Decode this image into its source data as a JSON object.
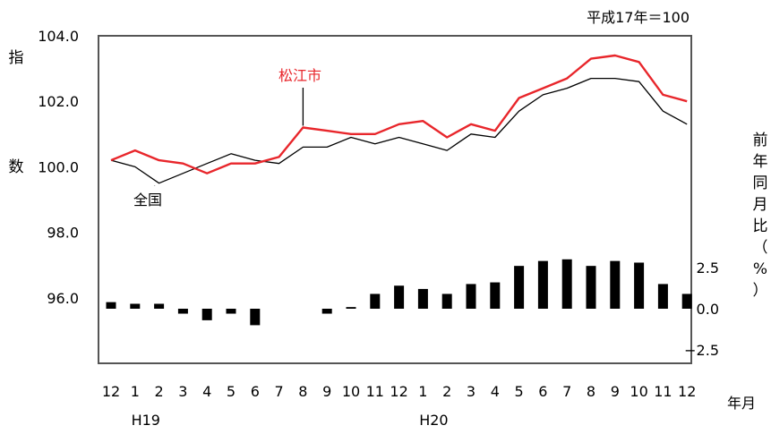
{
  "chart_data": {
    "type": "line",
    "note": "平成17年＝100",
    "ylabel": "指数",
    "ylabel2": "前年同月比（%）",
    "xlabel": "年月",
    "year_labels": [
      "H19",
      "H20"
    ],
    "categories": [
      "12",
      "1",
      "2",
      "3",
      "4",
      "5",
      "6",
      "7",
      "8",
      "9",
      "10",
      "11",
      "12",
      "1",
      "2",
      "3",
      "4",
      "5",
      "6",
      "7",
      "8",
      "9",
      "10",
      "11",
      "12"
    ],
    "y_ticks": [
      "104.0",
      "102.0",
      "100.0",
      "98.0",
      "96.0"
    ],
    "y_range": [
      94.0,
      104.0
    ],
    "y2_ticks": [
      "2.5",
      "0.0",
      "−2.5"
    ],
    "y2_range": [
      -3.1,
      3.6
    ],
    "series": [
      {
        "name": "松江市",
        "type": "line",
        "color": "#e8262b",
        "values": [
          100.2,
          100.5,
          100.2,
          100.1,
          99.8,
          100.1,
          100.1,
          100.3,
          101.2,
          101.1,
          101.0,
          101.0,
          101.3,
          101.4,
          100.9,
          101.3,
          101.1,
          102.1,
          102.4,
          102.7,
          103.3,
          103.4,
          103.2,
          102.2,
          102.0
        ]
      },
      {
        "name": "全国",
        "type": "line",
        "color": "#000000",
        "values": [
          100.2,
          100.0,
          99.5,
          99.8,
          100.1,
          100.4,
          100.2,
          100.1,
          100.6,
          100.6,
          100.9,
          100.7,
          100.9,
          100.7,
          100.5,
          101.0,
          100.9,
          101.7,
          102.2,
          102.4,
          102.7,
          102.7,
          102.6,
          101.7,
          101.3
        ]
      },
      {
        "name": "前年同月比",
        "type": "bar",
        "color": "#000000",
        "values": [
          0.4,
          0.3,
          0.3,
          -0.3,
          -0.7,
          -0.3,
          -1.0,
          0.0,
          0.0,
          -0.3,
          0.1,
          0.9,
          1.4,
          1.2,
          0.9,
          1.5,
          1.6,
          2.6,
          2.9,
          3.0,
          2.6,
          2.9,
          2.8,
          1.5,
          0.9
        ]
      }
    ]
  }
}
